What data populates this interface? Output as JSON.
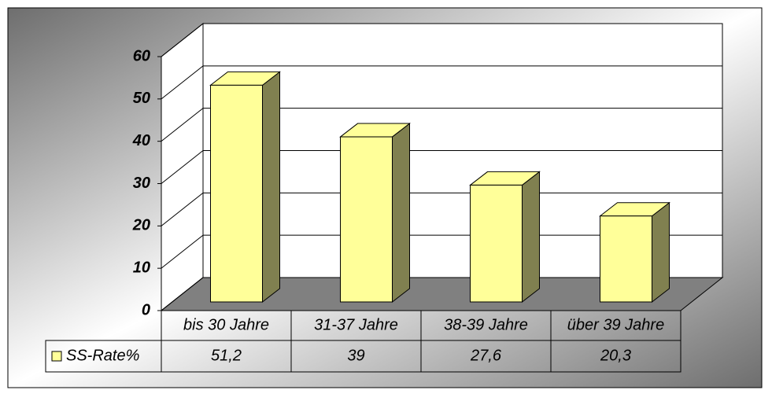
{
  "chart_data": {
    "type": "bar3d",
    "categories": [
      "bis 30 Jahre",
      "31-37 Jahre",
      "38-39 Jahre",
      "über 39 Jahre"
    ],
    "series": [
      {
        "name": "SS-Rate%",
        "color": "#ffff99",
        "values": [
          51.2,
          39,
          27.6,
          20.3
        ],
        "value_labels": [
          "51,2",
          "39",
          "27,6",
          "20,3"
        ]
      }
    ],
    "ylim": [
      0,
      60
    ],
    "yticks": [
      0,
      10,
      20,
      30,
      40,
      50,
      60
    ],
    "grid": true,
    "data_table": true
  }
}
